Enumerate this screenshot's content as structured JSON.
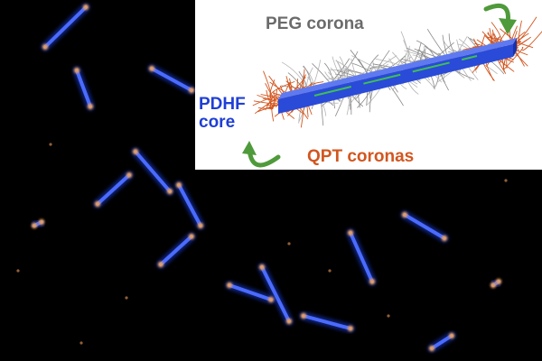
{
  "inset": {
    "labels": {
      "peg_corona": "PEG corona",
      "pdhf_core": "PDHF\ncore",
      "qpt_coronas": "QPT coronas"
    }
  },
  "colors": {
    "background": "#000000",
    "core_blue": "#2f4fe0",
    "peg_gray": "#6b6b6b",
    "qpt_orange": "#d2561f",
    "core_label": "#1f3fd6",
    "arrow_green": "#4f9a3a",
    "inner_line": "#3fbf54"
  },
  "icons": {
    "rotate_arrow_top": "curved-arrow-icon",
    "rotate_arrow_bottom": "curved-arrow-icon"
  }
}
